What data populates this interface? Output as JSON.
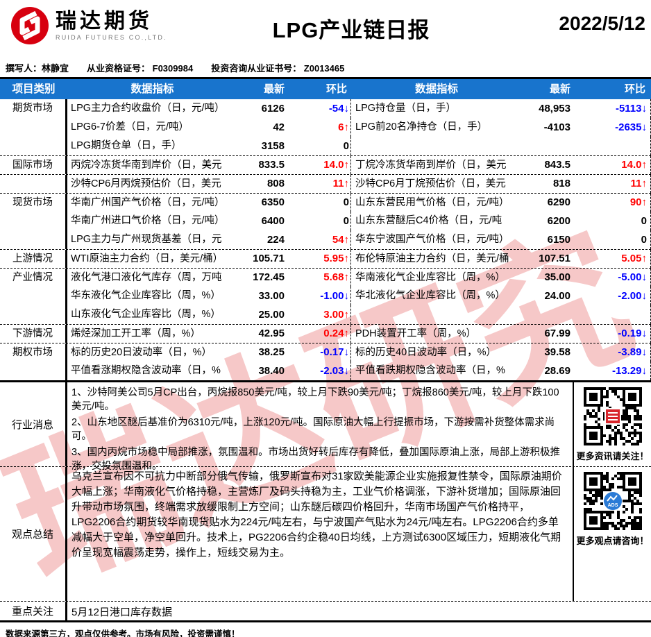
{
  "header": {
    "logo_cn": "瑞达期货",
    "logo_en": "RUIDA FUTURES CO.,LTD.",
    "title": "LPG产业链日报",
    "date": "2022/5/12"
  },
  "meta": {
    "author": "撰写人：林静宜",
    "license1": "从业资格证号： F0309984",
    "license2": "投资咨询从业证书号： Z0013465"
  },
  "table": {
    "headers": {
      "category": "项目类别",
      "indicator1": "数据指标",
      "latest1": "最新",
      "chg1": "环比",
      "indicator2": "数据指标",
      "latest2": "最新",
      "chg2": "环比"
    },
    "rows": [
      {
        "cat": "期货市场",
        "sep": false,
        "l": {
          "ind": "LPG主力合约收盘价（日，元/吨）",
          "val": "6126",
          "chg": "-54",
          "dir": "down"
        },
        "r": {
          "ind": "LPG持仓量（日，手）",
          "val": "48,953",
          "chg": "-5113",
          "dir": "down"
        }
      },
      {
        "cat": "",
        "sep": false,
        "l": {
          "ind": "LPG6-7价差（日，元/吨）",
          "val": "42",
          "chg": "6",
          "dir": "up"
        },
        "r": {
          "ind": "LPG前20名净持仓（日，手）",
          "val": "-4103",
          "chg": "-2635",
          "dir": "down"
        }
      },
      {
        "cat": "",
        "sep": false,
        "l": {
          "ind": "LPG期货仓单（日，手）",
          "val": "3158",
          "chg": "0",
          "dir": "none"
        },
        "r": null
      },
      {
        "cat": "国际市场",
        "sep": true,
        "l": {
          "ind": "丙烷冷冻货华南到岸价（日，美元",
          "val": "833.5",
          "chg": "14.0",
          "dir": "up"
        },
        "r": {
          "ind": "丁烷冷冻货华南到岸价（日，美元",
          "val": "843.5",
          "chg": "14.0",
          "dir": "up"
        }
      },
      {
        "cat": "",
        "sep": true,
        "l": {
          "ind": "沙特CP6月丙烷预估价（日，美元",
          "val": "808",
          "chg": "11",
          "dir": "up"
        },
        "r": {
          "ind": "沙特CP6月丁烷预估价（日，美元",
          "val": "818",
          "chg": "11",
          "dir": "up"
        }
      },
      {
        "cat": "现货市场",
        "sep": true,
        "l": {
          "ind": "华南广州国产气价格（日，元/吨）",
          "val": "6350",
          "chg": "0",
          "dir": "none"
        },
        "r": {
          "ind": "山东东营民用气价格（日，元/吨）",
          "val": "6290",
          "chg": "90",
          "dir": "up"
        }
      },
      {
        "cat": "",
        "sep": false,
        "l": {
          "ind": "华南广州进口气价格（日，元/吨）",
          "val": "6400",
          "chg": "0",
          "dir": "none"
        },
        "r": {
          "ind": "山东东营醚后C4价格（日，元/吨",
          "val": "6200",
          "chg": "0",
          "dir": "none"
        }
      },
      {
        "cat": "",
        "sep": false,
        "l": {
          "ind": "LPG主力与广州现货基差（日，元",
          "val": "224",
          "chg": "54",
          "dir": "up"
        },
        "r": {
          "ind": "华东宁波国产气价格（日，元/吨）",
          "val": "6150",
          "chg": "0",
          "dir": "none"
        }
      },
      {
        "cat": "上游情况",
        "sep": true,
        "l": {
          "ind": "WTI原油主力合约（日，美元/桶）",
          "val": "105.71",
          "chg": "5.95",
          "dir": "up"
        },
        "r": {
          "ind": "布伦特原油主力合约（日，美元/桶",
          "val": "107.51",
          "chg": "5.05",
          "dir": "up"
        }
      },
      {
        "cat": "产业情况",
        "sep": true,
        "l": {
          "ind": "液化气港口液化气库存（周，万吨",
          "val": "172.45",
          "chg": "5.68",
          "dir": "up"
        },
        "r": {
          "ind": "华南液化气企业库容比（周，%）",
          "val": "35.00",
          "chg": "-5.00",
          "dir": "down"
        }
      },
      {
        "cat": "",
        "sep": false,
        "l": {
          "ind": "华东液化气企业库容比（周，%）",
          "val": "33.00",
          "chg": "-1.00",
          "dir": "down"
        },
        "r": {
          "ind": "华北液化气企业库容比（周，%）",
          "val": "24.00",
          "chg": "-2.00",
          "dir": "down"
        }
      },
      {
        "cat": "",
        "sep": false,
        "l": {
          "ind": "山东液化气企业库容比（周，%）",
          "val": "25.00",
          "chg": "3.00",
          "dir": "up"
        },
        "r": null
      },
      {
        "cat": "下游情况",
        "sep": true,
        "l": {
          "ind": "烯烃深加工开工率（周，%）",
          "val": "42.95",
          "chg": "0.24",
          "dir": "up"
        },
        "r": {
          "ind": "PDH装置开工率（周，%）",
          "val": "67.99",
          "chg": "-0.19",
          "dir": "down"
        }
      },
      {
        "cat": "期权市场",
        "sep": true,
        "l": {
          "ind": "标的历史20日波动率（日，%）",
          "val": "38.25",
          "chg": "-0.17",
          "dir": "down"
        },
        "r": {
          "ind": "标的历史40日波动率（日，%）",
          "val": "39.58",
          "chg": "-3.89",
          "dir": "down"
        }
      },
      {
        "cat": "",
        "sep": false,
        "l": {
          "ind": "平值看涨期权隐含波动率（日，%",
          "val": "38.40",
          "chg": "-2.03",
          "dir": "down"
        },
        "r": {
          "ind": "平值看跌期权隐含波动率（日，%",
          "val": "28.69",
          "chg": "-13.29",
          "dir": "down"
        }
      }
    ]
  },
  "sections": {
    "news": {
      "label": "行业消息",
      "lines": [
        "1、沙特阿美公司5月CP出台，丙烷报850美元/吨，较上月下跌90美元/吨；丁烷报860美元/吨，较上月下跌100美元/吨。",
        "2、山东地区醚后基准价为6310元/吨，上涨120元/吨。国际原油大幅上行提振市场，下游按需补货整体需求尚可。",
        "3、国内丙烷市场稳中局部推涨，氛围温和。市场出货好转后库存有降低，叠加国际原油上涨，局部上游积极推涨，交投氛围温和。"
      ],
      "qr_caption": "更多资讯请关注！"
    },
    "views": {
      "label": "观点总结",
      "text": "乌克兰宣布因不可抗力中断部分俄气传输，俄罗斯宣布对31家欧美能源企业实施报复性禁令，国际原油期价大幅上涨；华南液化气价格持稳，主营炼厂及码头持稳为主，工业气价格调涨，下游补货增加；国际原油回升带动市场氛围，终端需求放缓限制上方空间；山东醚后碳四价格回升，华南市场国产气价格持平，LPG2206合约期货较华南现货贴水为224元/吨左右，与宁波国产气贴水为24元/吨左右。LPG2206合约多单减幅大于空单，净空单回升。技术上，PG2206合约企稳40日均线，上方测试6300区域压力，短期液化气期价呈现宽幅震荡走势，操作上，短线交易为主。",
      "qr_caption": "更多观点请咨询！"
    },
    "focus": {
      "label": "重点关注",
      "text": "5月12日港口库存数据"
    }
  },
  "footer": {
    "disclaimer": "数据来源第三方，观点仅供参考。市场有风险，投资需谨慎！"
  },
  "watermark": "瑞达研究",
  "colors": {
    "header_blue": "#1874CD",
    "up_red": "#FF0000",
    "down_blue": "#0000FF",
    "logo_red": "#D7000F",
    "qr2_blue": "#2B7BD6"
  }
}
